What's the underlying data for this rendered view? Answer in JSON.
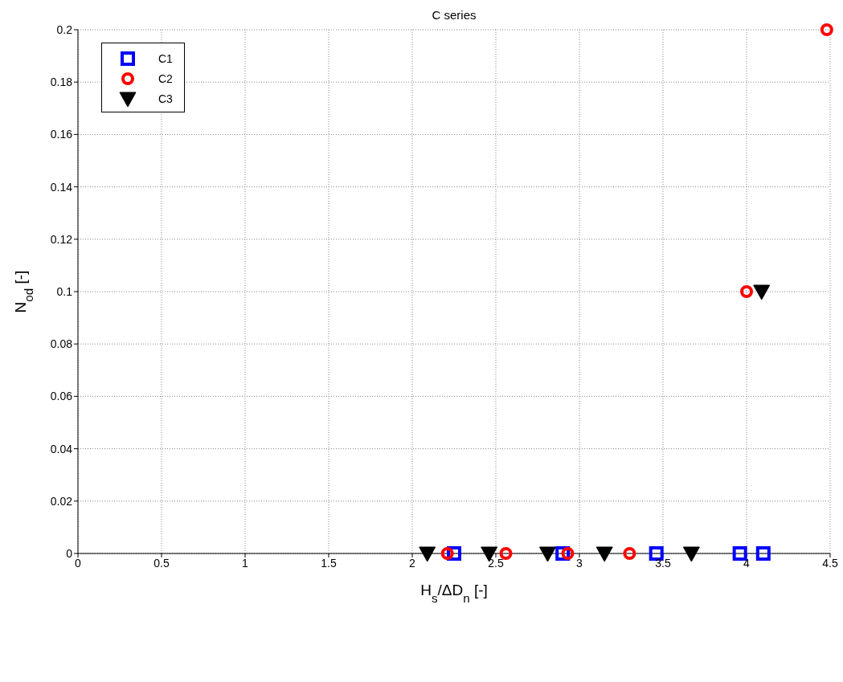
{
  "chart_data": {
    "type": "scatter",
    "title": "C series",
    "xlabel": "H$_{s}$/ΔD$_{n}$  [-]",
    "ylabel": "N$_{od}$  [-]",
    "xlim": [
      0,
      4.5
    ],
    "xticks": [
      0,
      0.5,
      1,
      1.5,
      2,
      2.5,
      3,
      3.5,
      4,
      4.5
    ],
    "ylim": [
      0,
      0.2
    ],
    "yticks": [
      0,
      0.02,
      0.04,
      0.06,
      0.08,
      0.1,
      0.12,
      0.14,
      0.16,
      0.18,
      0.2
    ],
    "grid": true,
    "legend": "top left",
    "series": [
      {
        "name": "C1",
        "color": "#0000ff",
        "marker": "square",
        "x": [
          2.25,
          2.9,
          3.46,
          3.96,
          4.1
        ],
        "values": [
          0,
          0,
          0,
          0,
          0
        ]
      },
      {
        "name": "C2",
        "color": "#ff0000",
        "marker": "circle",
        "x": [
          2.21,
          2.56,
          2.93,
          3.3,
          4.0,
          4.48
        ],
        "values": [
          0,
          0,
          0,
          0,
          0.1,
          0.2
        ]
      },
      {
        "name": "C3",
        "color": "#000000",
        "marker": "triangle",
        "x": [
          2.09,
          2.46,
          2.81,
          3.15,
          3.67,
          4.09
        ],
        "values": [
          0,
          0,
          0,
          0,
          0,
          0.1
        ]
      }
    ]
  }
}
